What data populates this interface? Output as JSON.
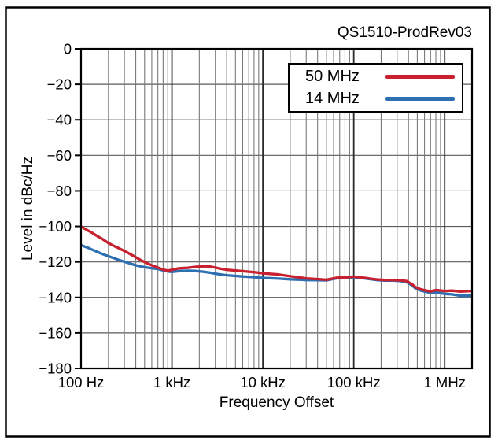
{
  "figure": {
    "title": "QS1510-ProdRev03",
    "xlabel": "Frequency Offset",
    "ylabel": "Level in dBc/Hz"
  },
  "legend": {
    "items": [
      {
        "label": "50 MHz",
        "color": "#c8202f"
      },
      {
        "label": "14 MHz",
        "color": "#2e6fb2"
      }
    ]
  },
  "colors": {
    "series_50mhz": "#c8202f",
    "series_14mhz": "#2e6fb2",
    "grid_minor": "#7a7a7a",
    "grid_decade": "#2a2a2a",
    "grid_horizontal": "#5a5a5a",
    "frame": "#000000",
    "background": "#ffffff"
  },
  "chart_data": {
    "type": "line",
    "title": "QS1510-ProdRev03",
    "xlabel": "Frequency Offset",
    "ylabel": "Level in dBc/Hz",
    "x_scale": "log",
    "xlim": [
      100,
      2000000
    ],
    "ylim": [
      -180,
      0
    ],
    "grid": "on (log minor verticals, 20 dB horizontals)",
    "legend_position": "inside top-right",
    "x_ticks": [
      100,
      1000,
      10000,
      100000,
      1000000
    ],
    "x_tick_labels": [
      "100 Hz",
      "1 kHz",
      "10 kHz",
      "100 kHz",
      "1 MHz"
    ],
    "y_ticks": [
      0,
      -20,
      -40,
      -60,
      -80,
      -100,
      -120,
      -140,
      -160,
      -180
    ],
    "y_tick_labels": [
      "0",
      "−20",
      "−40",
      "−60",
      "−80",
      "−100",
      "−120",
      "−140",
      "−160",
      "−180"
    ],
    "series": [
      {
        "name": "50 MHz",
        "color": "#c8202f",
        "points": [
          [
            100,
            -100
          ],
          [
            110,
            -101.3
          ],
          [
            120,
            -102.4
          ],
          [
            130,
            -103.4
          ],
          [
            150,
            -105.4
          ],
          [
            170,
            -107
          ],
          [
            200,
            -109.4
          ],
          [
            230,
            -111
          ],
          [
            260,
            -112.3
          ],
          [
            300,
            -113.8
          ],
          [
            350,
            -115.7
          ],
          [
            400,
            -117.4
          ],
          [
            450,
            -118.9
          ],
          [
            500,
            -120.1
          ],
          [
            600,
            -121.9
          ],
          [
            700,
            -123.2
          ],
          [
            800,
            -124.3
          ],
          [
            900,
            -125
          ],
          [
            1000,
            -124.4
          ],
          [
            1200,
            -123.6
          ],
          [
            1500,
            -123.3
          ],
          [
            1800,
            -122.8
          ],
          [
            2200,
            -122.5
          ],
          [
            2600,
            -122.6
          ],
          [
            3000,
            -123.2
          ],
          [
            3500,
            -123.9
          ],
          [
            4000,
            -124.4
          ],
          [
            5000,
            -124.9
          ],
          [
            6000,
            -125.2
          ],
          [
            7000,
            -125.5
          ],
          [
            8500,
            -125.9
          ],
          [
            10000,
            -126.4
          ],
          [
            12000,
            -126.7
          ],
          [
            15000,
            -127.1
          ],
          [
            20000,
            -128.1
          ],
          [
            25000,
            -128.7
          ],
          [
            30000,
            -129.3
          ],
          [
            40000,
            -129.7
          ],
          [
            50000,
            -130.1
          ],
          [
            60000,
            -129.3
          ],
          [
            70000,
            -128.6
          ],
          [
            80000,
            -128.8
          ],
          [
            90000,
            -128.5
          ],
          [
            100000,
            -128.3
          ],
          [
            120000,
            -128.7
          ],
          [
            150000,
            -129.4
          ],
          [
            180000,
            -129.9
          ],
          [
            220000,
            -130.2
          ],
          [
            270000,
            -130.2
          ],
          [
            320000,
            -130.4
          ],
          [
            380000,
            -130.8
          ],
          [
            430000,
            -132.3
          ],
          [
            480000,
            -134.3
          ],
          [
            550000,
            -135.5
          ],
          [
            620000,
            -136.1
          ],
          [
            700000,
            -136.6
          ],
          [
            800000,
            -135.9
          ],
          [
            900000,
            -136.1
          ],
          [
            1000000,
            -136.4
          ],
          [
            1200000,
            -136.2
          ],
          [
            1500000,
            -136.7
          ],
          [
            1800000,
            -136.5
          ],
          [
            2000000,
            -136.4
          ]
        ]
      },
      {
        "name": "14 MHz",
        "color": "#2e6fb2",
        "points": [
          [
            100,
            -110.5
          ],
          [
            110,
            -111.4
          ],
          [
            120,
            -112.1
          ],
          [
            130,
            -112.9
          ],
          [
            150,
            -114.3
          ],
          [
            170,
            -115.5
          ],
          [
            200,
            -116.8
          ],
          [
            230,
            -117.9
          ],
          [
            260,
            -118.9
          ],
          [
            300,
            -119.9
          ],
          [
            350,
            -121
          ],
          [
            400,
            -121.9
          ],
          [
            450,
            -122.5
          ],
          [
            500,
            -123
          ],
          [
            600,
            -123.6
          ],
          [
            700,
            -123.9
          ],
          [
            800,
            -124.8
          ],
          [
            900,
            -125.4
          ],
          [
            1000,
            -125.6
          ],
          [
            1200,
            -125.2
          ],
          [
            1500,
            -125
          ],
          [
            1800,
            -125.1
          ],
          [
            2200,
            -125.5
          ],
          [
            2600,
            -126
          ],
          [
            3000,
            -126.6
          ],
          [
            3500,
            -127.1
          ],
          [
            4000,
            -127.5
          ],
          [
            5000,
            -127.9
          ],
          [
            6000,
            -128.2
          ],
          [
            7000,
            -128.4
          ],
          [
            8500,
            -128.7
          ],
          [
            10000,
            -129
          ],
          [
            12000,
            -129.2
          ],
          [
            15000,
            -129.4
          ],
          [
            20000,
            -129.8
          ],
          [
            25000,
            -130
          ],
          [
            30000,
            -130.2
          ],
          [
            40000,
            -130.3
          ],
          [
            50000,
            -130.4
          ],
          [
            60000,
            -129.6
          ],
          [
            70000,
            -128.9
          ],
          [
            80000,
            -129.1
          ],
          [
            90000,
            -128.8
          ],
          [
            100000,
            -128.6
          ],
          [
            120000,
            -129
          ],
          [
            150000,
            -129.7
          ],
          [
            180000,
            -130.2
          ],
          [
            220000,
            -130.5
          ],
          [
            270000,
            -130.5
          ],
          [
            320000,
            -130.7
          ],
          [
            380000,
            -131.3
          ],
          [
            430000,
            -133
          ],
          [
            480000,
            -135
          ],
          [
            550000,
            -136.2
          ],
          [
            620000,
            -136.8
          ],
          [
            700000,
            -137.4
          ],
          [
            800000,
            -137.2
          ],
          [
            900000,
            -137.6
          ],
          [
            1000000,
            -138
          ],
          [
            1200000,
            -138.3
          ],
          [
            1500000,
            -139.1
          ],
          [
            1800000,
            -139
          ],
          [
            2000000,
            -139.1
          ]
        ]
      }
    ]
  }
}
